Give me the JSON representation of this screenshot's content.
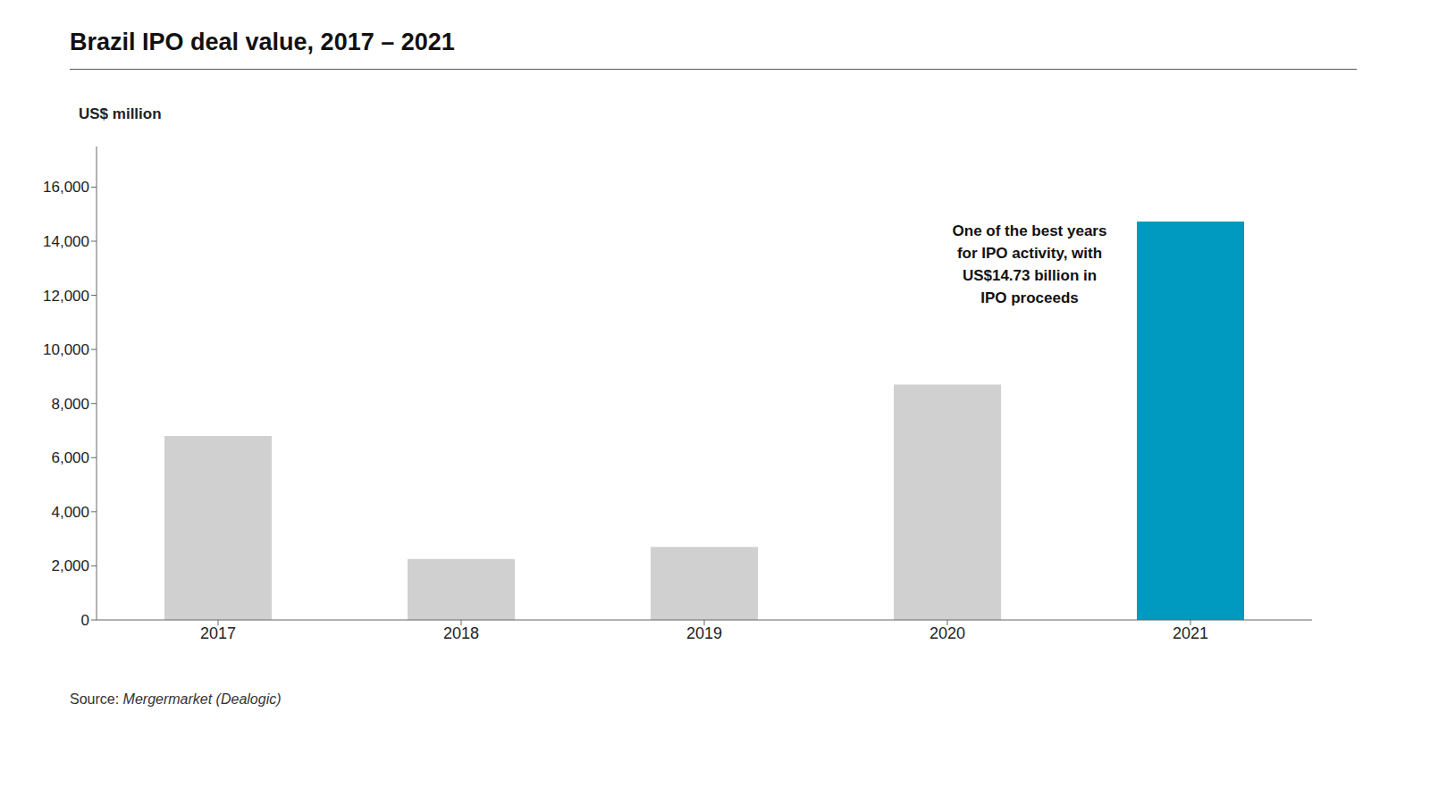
{
  "chart_data": {
    "type": "bar",
    "title": "Brazil IPO deal value, 2017 – 2021",
    "ylabel": "US$ million",
    "annotation": "One of the best years\nfor IPO activity, with\nUS$14.73 billion in\nIPO proceeds",
    "source_label": "Source: ",
    "source": "Mergermarket (Dealogic)",
    "categories": [
      "2017",
      "2018",
      "2019",
      "2020",
      "2021"
    ],
    "values": [
      6800,
      2250,
      2700,
      8700,
      14730
    ],
    "colors": [
      "#d0d0d0",
      "#d0d0d0",
      "#d0d0d0",
      "#d0d0d0",
      "#0099c0"
    ],
    "ylim": [
      0,
      17500
    ],
    "yticks": [
      0,
      {
        "value": 2000,
        "label": "2,000"
      },
      {
        "value": 4000,
        "label": "4,000"
      },
      {
        "value": 6000,
        "label": "6,000"
      },
      {
        "value": 8000,
        "label": "8,000"
      },
      {
        "value": 10000,
        "label": "10,000"
      },
      {
        "value": 12000,
        "label": "12,000"
      },
      {
        "value": 14000,
        "label": "14,000"
      },
      {
        "value": 16000,
        "label": "16,000"
      }
    ],
    "grid": false
  }
}
